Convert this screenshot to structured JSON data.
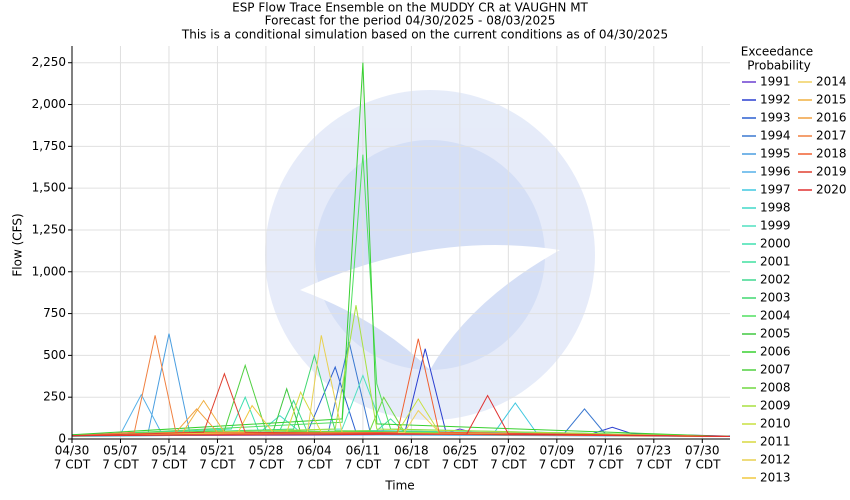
{
  "chart_data": {
    "type": "line",
    "title": [
      "ESP Flow Trace Ensemble on the MUDDY CR at VAUGHN MT",
      "Forecast for the period 04/30/2025 - 08/03/2025",
      "This is a conditional simulation based on the current conditions as of 04/30/2025"
    ],
    "x_label": "Time",
    "y_label": "Flow (CFS)",
    "legend_title": [
      "Exceedance",
      "Probability"
    ],
    "xlim": [
      "04/30",
      "08/03"
    ],
    "xticks": [
      {
        "value": "04/30",
        "label": "04/30",
        "sublabel": "7 CDT"
      },
      {
        "value": "05/07",
        "label": "05/07",
        "sublabel": "7 CDT"
      },
      {
        "value": "05/14",
        "label": "05/14",
        "sublabel": "7 CDT"
      },
      {
        "value": "05/21",
        "label": "05/21",
        "sublabel": "7 CDT"
      },
      {
        "value": "05/28",
        "label": "05/28",
        "sublabel": "7 CDT"
      },
      {
        "value": "06/04",
        "label": "06/04",
        "sublabel": "7 CDT"
      },
      {
        "value": "06/11",
        "label": "06/11",
        "sublabel": "7 CDT"
      },
      {
        "value": "06/18",
        "label": "06/18",
        "sublabel": "7 CDT"
      },
      {
        "value": "06/25",
        "label": "06/25",
        "sublabel": "7 CDT"
      },
      {
        "value": "07/02",
        "label": "07/02",
        "sublabel": "7 CDT"
      },
      {
        "value": "07/09",
        "label": "07/09",
        "sublabel": "7 CDT"
      },
      {
        "value": "07/16",
        "label": "07/16",
        "sublabel": "7 CDT"
      },
      {
        "value": "07/23",
        "label": "07/23",
        "sublabel": "7 CDT"
      },
      {
        "value": "07/30",
        "label": "07/30",
        "sublabel": "7 CDT"
      }
    ],
    "ylim": [
      0,
      2350
    ],
    "yticks": [
      0,
      {
        "value": 250,
        "label": "250"
      },
      {
        "value": 500,
        "label": "500"
      },
      {
        "value": 750,
        "label": "750"
      },
      {
        "value": 1000,
        "label": "1,000"
      },
      {
        "value": 1250,
        "label": "1,250"
      },
      {
        "value": 1500,
        "label": "1,500"
      },
      {
        "value": 1750,
        "label": "1,750"
      },
      {
        "value": 2000,
        "label": "2,000"
      },
      {
        "value": 2250,
        "label": "2,250"
      }
    ],
    "grid": true,
    "series": [
      {
        "name": "1991",
        "color": "#6a3fd0",
        "x": [
          "04/30",
          "06/22",
          "06/25",
          "06/28",
          "07/20",
          "08/03"
        ],
        "values": [
          20,
          25,
          60,
          25,
          20,
          15
        ]
      },
      {
        "name": "1992",
        "color": "#2b3fd0",
        "x": [
          "04/30",
          "06/17",
          "06/20",
          "06/23",
          "07/14",
          "07/17",
          "07/20",
          "08/03"
        ],
        "values": [
          22,
          30,
          540,
          40,
          30,
          70,
          30,
          18
        ]
      },
      {
        "name": "1993",
        "color": "#2a5fd0",
        "x": [
          "04/30",
          "06/03",
          "06/07",
          "06/10",
          "08/03"
        ],
        "values": [
          20,
          40,
          430,
          40,
          15
        ]
      },
      {
        "name": "1994",
        "color": "#3a78d0",
        "x": [
          "04/30",
          "06/06",
          "06/09",
          "06/12",
          "07/10",
          "07/13",
          "07/16",
          "08/03"
        ],
        "values": [
          18,
          40,
          580,
          50,
          30,
          180,
          30,
          15
        ]
      },
      {
        "name": "1995",
        "color": "#4a9ee0",
        "x": [
          "04/30",
          "05/11",
          "05/14",
          "05/17",
          "08/03"
        ],
        "values": [
          25,
          40,
          630,
          40,
          15
        ]
      },
      {
        "name": "1996",
        "color": "#55b0e8",
        "x": [
          "04/30",
          "05/07",
          "05/10",
          "05/13",
          "08/03"
        ],
        "values": [
          20,
          30,
          265,
          30,
          15
        ]
      },
      {
        "name": "1997",
        "color": "#40c8e0",
        "x": [
          "04/30",
          "06/30",
          "07/03",
          "07/06",
          "08/03"
        ],
        "values": [
          15,
          40,
          215,
          40,
          15
        ]
      },
      {
        "name": "1998",
        "color": "#40d8c8",
        "x": [
          "04/30",
          "05/27",
          "05/30",
          "06/02",
          "08/03"
        ],
        "values": [
          20,
          35,
          140,
          40,
          15
        ]
      },
      {
        "name": "1999",
        "color": "#50e0c0",
        "x": [
          "04/30",
          "06/08",
          "06/11",
          "06/14",
          "08/03"
        ],
        "values": [
          20,
          60,
          380,
          50,
          15
        ]
      },
      {
        "name": "2000",
        "color": "#40e0b0",
        "x": [
          "04/30",
          "05/23",
          "05/25",
          "05/27",
          "08/03"
        ],
        "values": [
          20,
          60,
          250,
          40,
          15
        ]
      },
      {
        "name": "2001",
        "color": "#40e0a0",
        "x": [
          "04/30",
          "06/13",
          "06/15",
          "06/17",
          "08/03"
        ],
        "values": [
          20,
          50,
          120,
          40,
          15
        ]
      },
      {
        "name": "2002",
        "color": "#40d890",
        "x": [
          "04/30",
          "05/30",
          "06/01",
          "06/03",
          "08/03"
        ],
        "values": [
          20,
          50,
          230,
          40,
          15
        ]
      },
      {
        "name": "2003",
        "color": "#40d870",
        "x": [
          "04/30",
          "06/01",
          "06/04",
          "06/07",
          "08/03"
        ],
        "values": [
          20,
          60,
          500,
          50,
          15
        ]
      },
      {
        "name": "2004",
        "color": "#50e060",
        "x": [
          "04/30",
          "06/08",
          "06/11",
          "06/13",
          "06/15",
          "08/03"
        ],
        "values": [
          20,
          100,
          1700,
          330,
          60,
          15
        ]
      },
      {
        "name": "2005",
        "color": "#40c840",
        "x": [
          "04/30",
          "05/29",
          "05/31",
          "06/02",
          "08/03"
        ],
        "values": [
          20,
          40,
          300,
          40,
          15
        ]
      },
      {
        "name": "2006",
        "color": "#38d030",
        "x": [
          "04/30",
          "06/08",
          "06/11",
          "06/13",
          "08/03"
        ],
        "values": [
          25,
          120,
          2250,
          90,
          15
        ]
      },
      {
        "name": "2007",
        "color": "#50d040",
        "x": [
          "04/30",
          "05/22",
          "05/25",
          "05/28",
          "08/03"
        ],
        "values": [
          20,
          50,
          440,
          50,
          15
        ]
      },
      {
        "name": "2008",
        "color": "#70d840",
        "x": [
          "04/30",
          "06/12",
          "06/14",
          "06/17",
          "08/03"
        ],
        "values": [
          20,
          50,
          250,
          40,
          15
        ]
      },
      {
        "name": "2009",
        "color": "#a8e040",
        "x": [
          "04/30",
          "06/07",
          "06/10",
          "06/13",
          "08/03"
        ],
        "values": [
          20,
          60,
          800,
          60,
          15
        ]
      },
      {
        "name": "2010",
        "color": "#c8e040",
        "x": [
          "04/30",
          "06/16",
          "06/19",
          "06/22",
          "08/03"
        ],
        "values": [
          20,
          40,
          240,
          40,
          15
        ]
      },
      {
        "name": "2011",
        "color": "#d8d840",
        "x": [
          "04/30",
          "05/31",
          "06/02",
          "06/05",
          "08/03"
        ],
        "values": [
          20,
          40,
          280,
          40,
          15
        ]
      },
      {
        "name": "2012",
        "color": "#e8d050",
        "x": [
          "04/30",
          "06/03",
          "06/05",
          "06/08",
          "08/03"
        ],
        "values": [
          20,
          40,
          620,
          40,
          15
        ]
      },
      {
        "name": "2013",
        "color": "#f0c840",
        "x": [
          "04/30",
          "05/24",
          "05/26",
          "05/29",
          "08/03"
        ],
        "values": [
          20,
          40,
          200,
          40,
          15
        ]
      },
      {
        "name": "2014",
        "color": "#f0d060",
        "x": [
          "04/30",
          "06/17",
          "06/19",
          "06/22",
          "08/03"
        ],
        "values": [
          20,
          40,
          170,
          40,
          15
        ]
      },
      {
        "name": "2015",
        "color": "#f0b040",
        "x": [
          "04/30",
          "05/16",
          "05/19",
          "05/22",
          "08/03"
        ],
        "values": [
          20,
          40,
          230,
          40,
          15
        ]
      },
      {
        "name": "2016",
        "color": "#f0a040",
        "x": [
          "04/30",
          "05/15",
          "05/18",
          "05/21",
          "08/03"
        ],
        "values": [
          20,
          40,
          180,
          40,
          15
        ]
      },
      {
        "name": "2017",
        "color": "#f08040",
        "x": [
          "04/30",
          "05/09",
          "05/12",
          "05/15",
          "08/03"
        ],
        "values": [
          20,
          40,
          620,
          40,
          15
        ]
      },
      {
        "name": "2018",
        "color": "#f06030",
        "x": [
          "04/30",
          "06/16",
          "06/19",
          "06/22",
          "08/03"
        ],
        "values": [
          20,
          40,
          600,
          40,
          15
        ]
      },
      {
        "name": "2019",
        "color": "#e04030",
        "x": [
          "04/30",
          "05/19",
          "05/22",
          "05/25",
          "08/03"
        ],
        "values": [
          20,
          40,
          390,
          40,
          15
        ]
      },
      {
        "name": "2020",
        "color": "#e03030",
        "x": [
          "04/30",
          "06/26",
          "06/29",
          "07/02",
          "08/03"
        ],
        "values": [
          20,
          30,
          260,
          30,
          15
        ]
      }
    ]
  }
}
